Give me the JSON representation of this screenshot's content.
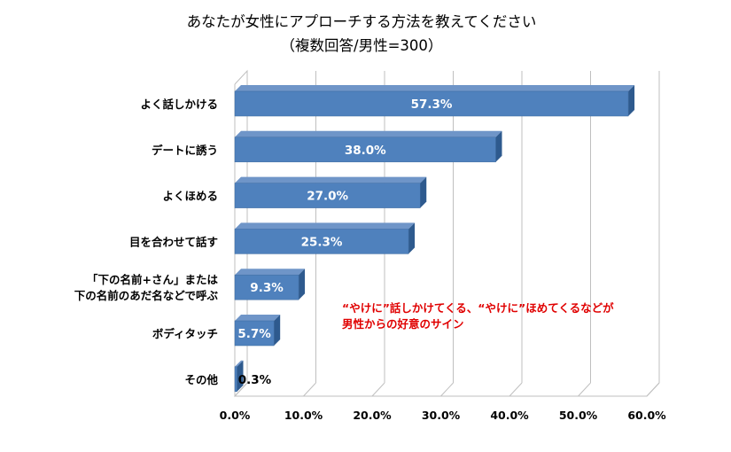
{
  "colors": {
    "bar_face": "#4F81BD",
    "bar_top": "#6F95C8",
    "bar_side": "#2E5A8E",
    "grid": "#BFBFBF",
    "annotation": "#E00000",
    "label_inside": "#FFFFFF",
    "label_outside": "#000000"
  },
  "chart_data": {
    "type": "bar",
    "orientation": "horizontal",
    "style": "3d-clustered-bar",
    "title": "あなたが女性にアプローチする方法を教えてください",
    "subtitle": "（複数回答/男性=300）",
    "categories": [
      "よく話しかける",
      "デートに誘う",
      "よくほめる",
      "目を合わせて話す",
      "「下の名前+さん」または\n下の名前のあだ名などで呼ぶ",
      "ボディタッチ",
      "その他"
    ],
    "values": [
      57.3,
      38.0,
      27.0,
      25.3,
      9.3,
      5.7,
      0.3
    ],
    "data_labels": [
      "57.3%",
      "38.0%",
      "27.0%",
      "25.3%",
      "9.3%",
      "5.7%",
      "0.3%"
    ],
    "xlim": [
      0,
      60
    ],
    "ticks": [
      0,
      10,
      20,
      30,
      40,
      50,
      60
    ],
    "tick_labels": [
      "0.0%",
      "10.0%",
      "20.0%",
      "30.0%",
      "40.0%",
      "50.0%",
      "60.0%"
    ],
    "grid": true,
    "legend": "none",
    "annotation": {
      "lines": [
        "“やけに”話しかけてくる、“やけに”ほめてくるなどが",
        "男性からの好意のサイン"
      ]
    }
  }
}
